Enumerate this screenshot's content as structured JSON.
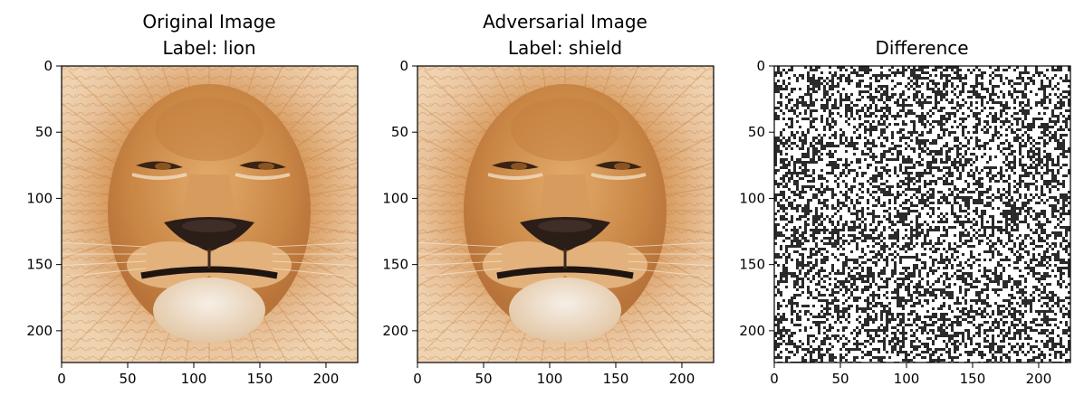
{
  "figure": {
    "panels": [
      {
        "title_line1": "Original Image",
        "title_line2": "Label: lion",
        "content": "lion-face-photo",
        "xticks": [
          "0",
          "50",
          "100",
          "150",
          "200"
        ],
        "yticks": [
          "0",
          "50",
          "100",
          "150",
          "200"
        ]
      },
      {
        "title_line1": "Adversarial Image",
        "title_line2": "Label: shield",
        "content": "lion-face-photo",
        "xticks": [
          "0",
          "50",
          "100",
          "150",
          "200"
        ],
        "yticks": [
          "0",
          "50",
          "100",
          "150",
          "200"
        ]
      },
      {
        "title_line1": "Difference",
        "title_line2": "",
        "content": "noise-difference-map",
        "xticks": [
          "0",
          "50",
          "100",
          "150",
          "200"
        ],
        "yticks": [
          "0",
          "50",
          "100",
          "150",
          "200"
        ]
      }
    ],
    "image_extent": [
      0,
      224
    ],
    "tick_values": [
      0,
      50,
      100,
      150,
      200
    ],
    "colors": {
      "mane_light": "#e2ac6f",
      "mane_dark": "#c9823f",
      "face": "#dba066",
      "noise_dark": "#2a2a2a",
      "noise_light": "#ffffff"
    }
  }
}
